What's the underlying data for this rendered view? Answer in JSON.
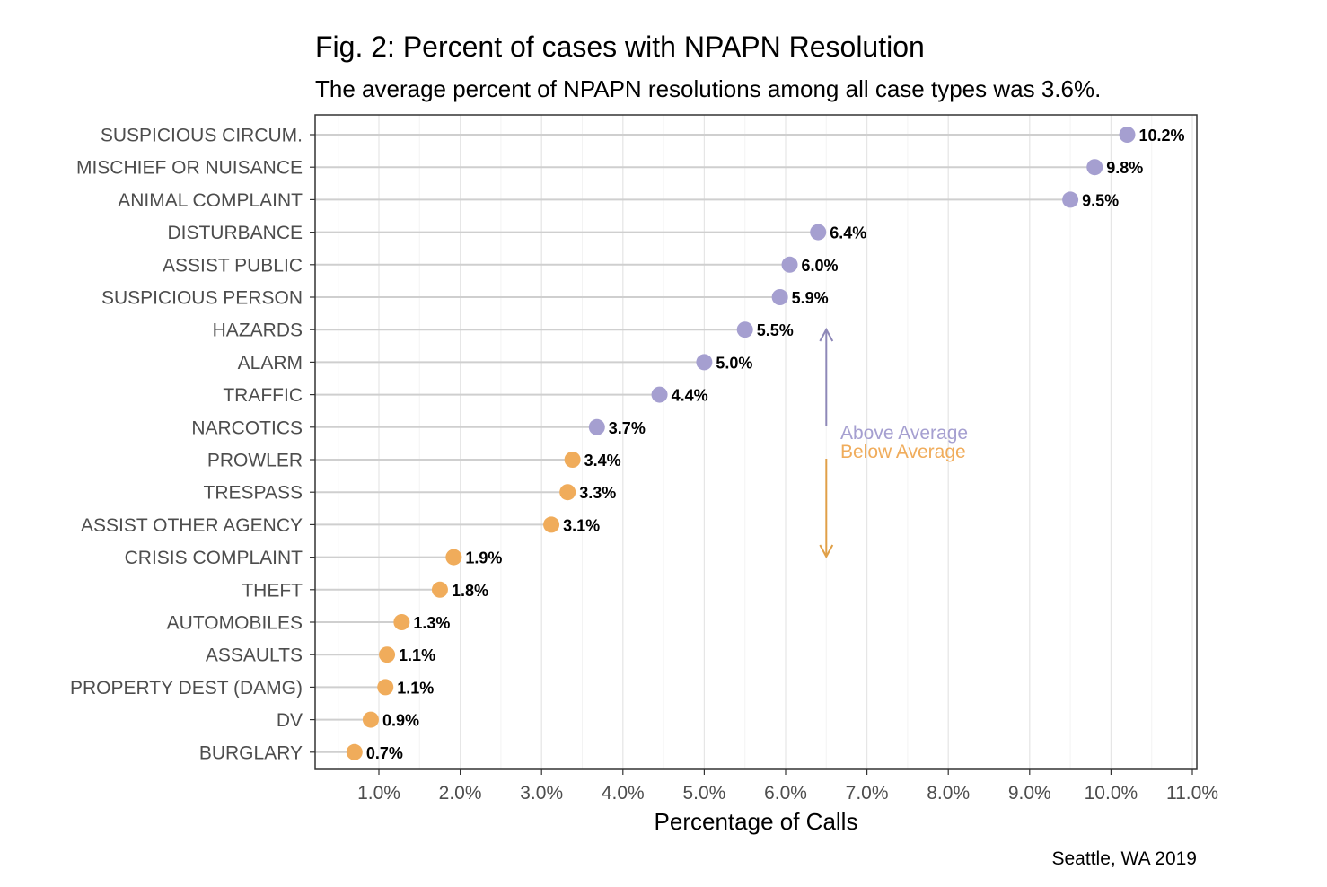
{
  "chart_data": {
    "type": "scatter",
    "style": "lollipop",
    "title": "Fig. 2: Percent of cases with NPAPN Resolution",
    "subtitle": "The average percent of NPAPN resolutions among all case types was 3.6%.",
    "xlabel": "Percentage of Calls",
    "ylabel": "",
    "caption": "Seattle, WA 2019",
    "xlim": [
      0.3,
      11.0
    ],
    "xticks": [
      1,
      2,
      3,
      4,
      5,
      6,
      7,
      8,
      9,
      10,
      11
    ],
    "xtick_labels": [
      "1.0%",
      "2.0%",
      "3.0%",
      "4.0%",
      "5.0%",
      "6.0%",
      "7.0%",
      "8.0%",
      "9.0%",
      "10.0%",
      "11.0%"
    ],
    "average": 3.6,
    "grid": true,
    "colors": {
      "above": "#a59fd0",
      "below": "#f0ac5b",
      "arrow_above": "#8e88b8",
      "arrow_below": "#e0a048"
    },
    "annotation": {
      "above_text": "Above Average",
      "below_text": "Below Average",
      "x": 6.5
    },
    "categories": [
      "SUSPICIOUS CIRCUM.",
      "MISCHIEF OR NUISANCE",
      "ANIMAL COMPLAINT",
      "DISTURBANCE",
      "ASSIST PUBLIC",
      "SUSPICIOUS PERSON",
      "HAZARDS",
      "ALARM",
      "TRAFFIC",
      "NARCOTICS",
      "PROWLER",
      "TRESPASS",
      "ASSIST OTHER AGENCY",
      "CRISIS COMPLAINT",
      "THEFT",
      "AUTOMOBILES",
      "ASSAULTS",
      "PROPERTY DEST (DAMG)",
      "DV",
      "BURGLARY"
    ],
    "values": [
      10.2,
      9.8,
      9.5,
      6.4,
      6.05,
      5.93,
      5.5,
      5.0,
      4.45,
      3.68,
      3.38,
      3.32,
      3.12,
      1.92,
      1.75,
      1.28,
      1.1,
      1.08,
      0.9,
      0.7
    ],
    "value_labels": [
      "10.2%",
      "9.8%",
      "9.5%",
      "6.4%",
      "6.0%",
      "5.9%",
      "5.5%",
      "5.0%",
      "4.4%",
      "3.7%",
      "3.4%",
      "3.3%",
      "3.1%",
      "1.9%",
      "1.8%",
      "1.3%",
      "1.1%",
      "1.1%",
      "0.9%",
      "0.7%"
    ]
  }
}
